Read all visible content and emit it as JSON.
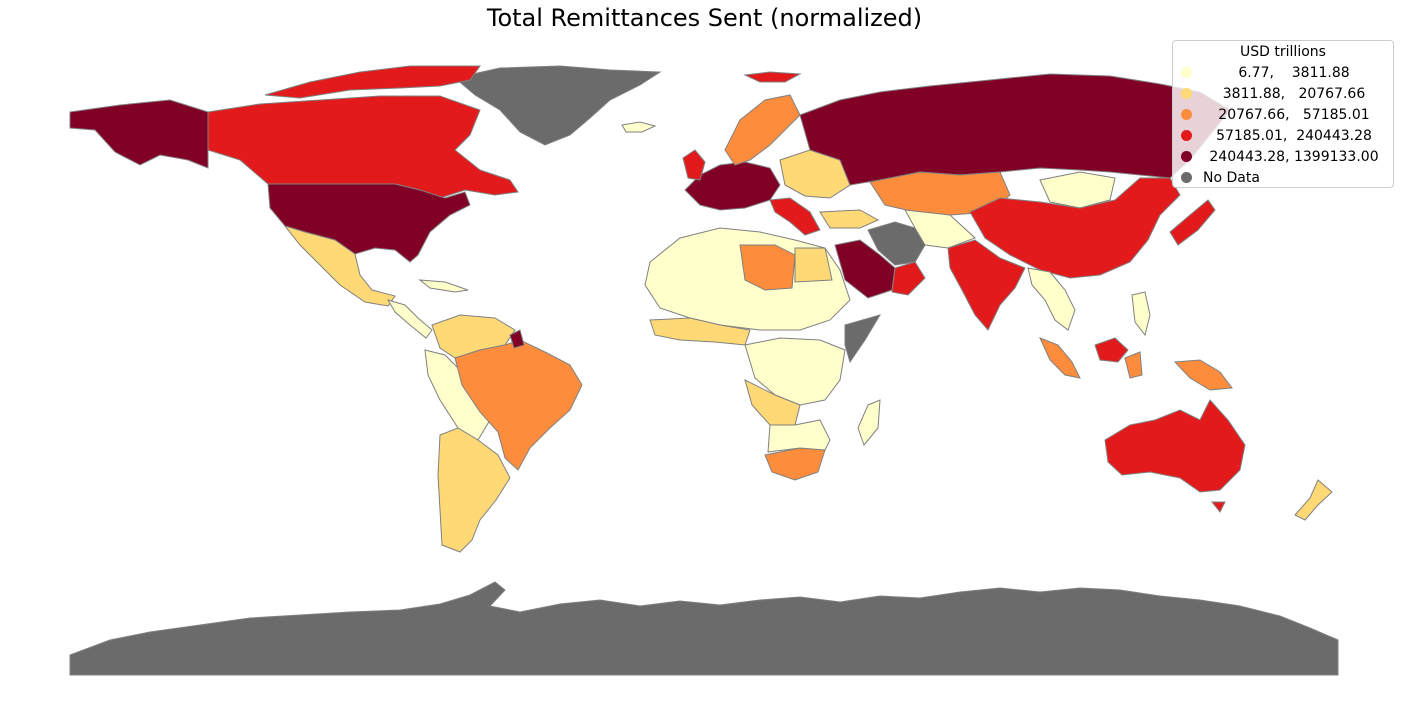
{
  "title": "Total Remittances Sent (normalized)",
  "legend": {
    "title": "USD trillions",
    "entries": [
      {
        "label": "6.77,    3811.88",
        "color": "#ffffcc"
      },
      {
        "label": "3811.88,   20767.66",
        "color": "#fed976"
      },
      {
        "label": "20767.66,   57185.01",
        "color": "#fd8d3c"
      },
      {
        "label": "57185.01,  240443.28",
        "color": "#e31a1c"
      },
      {
        "label": "240443.28, 1399133.00",
        "color": "#800026"
      },
      {
        "label": "No Data",
        "color": "#6b6b6b"
      }
    ]
  },
  "colors": {
    "class1": "#ffffcc",
    "class2": "#fed976",
    "class3": "#fd8d3c",
    "class4": "#e31a1c",
    "class5": "#800026",
    "nodata": "#6b6b6b"
  }
}
